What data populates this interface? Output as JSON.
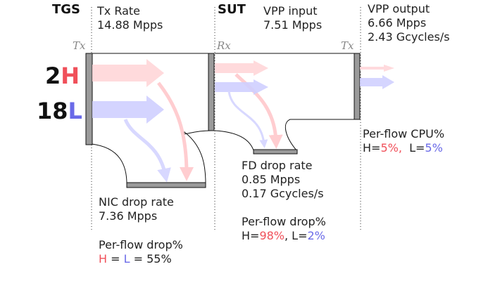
{
  "tgs": {
    "title": "TGS",
    "tx_port": "Tx",
    "tx_rate_label": "Tx Rate",
    "tx_rate_value": "14.88 Mpps",
    "nic_drop_label": "NIC drop rate",
    "nic_drop_value": "7.36 Mpps",
    "per_flow_drop_label": "Per-flow drop%",
    "per_flow_drop_h": "H",
    "per_flow_drop_eq1": " = ",
    "per_flow_drop_l": "L",
    "per_flow_drop_eq2": " = 55%"
  },
  "flows": {
    "heavy_count": "2",
    "heavy_letter": "H",
    "light_count": "18",
    "light_letter": "L"
  },
  "sut": {
    "title": "SUT",
    "rx_port": "Rx",
    "tx_port": "Tx",
    "vpp_input_label": "VPP input",
    "vpp_input_value": "7.51 Mpps",
    "vpp_output_label": "VPP output",
    "vpp_output_mpps": "6.66 Mpps",
    "vpp_output_gcycles": "2.43 Gcycles/s",
    "fd_drop_label": "FD drop rate",
    "fd_drop_mpps": "0.85 Mpps",
    "fd_drop_gcycles": "0.17 Gcycles/s",
    "per_flow_drop_label": "Per-flow drop%",
    "per_flow_drop_h_prefix": "H=",
    "per_flow_drop_h_value": "98%",
    "per_flow_drop_sep": ", L=",
    "per_flow_drop_l_value": "2%",
    "per_flow_cpu_label": "Per-flow CPU%",
    "per_flow_cpu_h_prefix": "H=",
    "per_flow_cpu_h_value": "5%,",
    "per_flow_cpu_sep": "  L=",
    "per_flow_cpu_l_value": "5%"
  },
  "colors": {
    "heavy": "#f0505a",
    "heavy_flow": "#ffc8cc",
    "light": "#6a6ae8",
    "light_flow": "#c8c8ff",
    "bar": "#9a9a9a"
  }
}
